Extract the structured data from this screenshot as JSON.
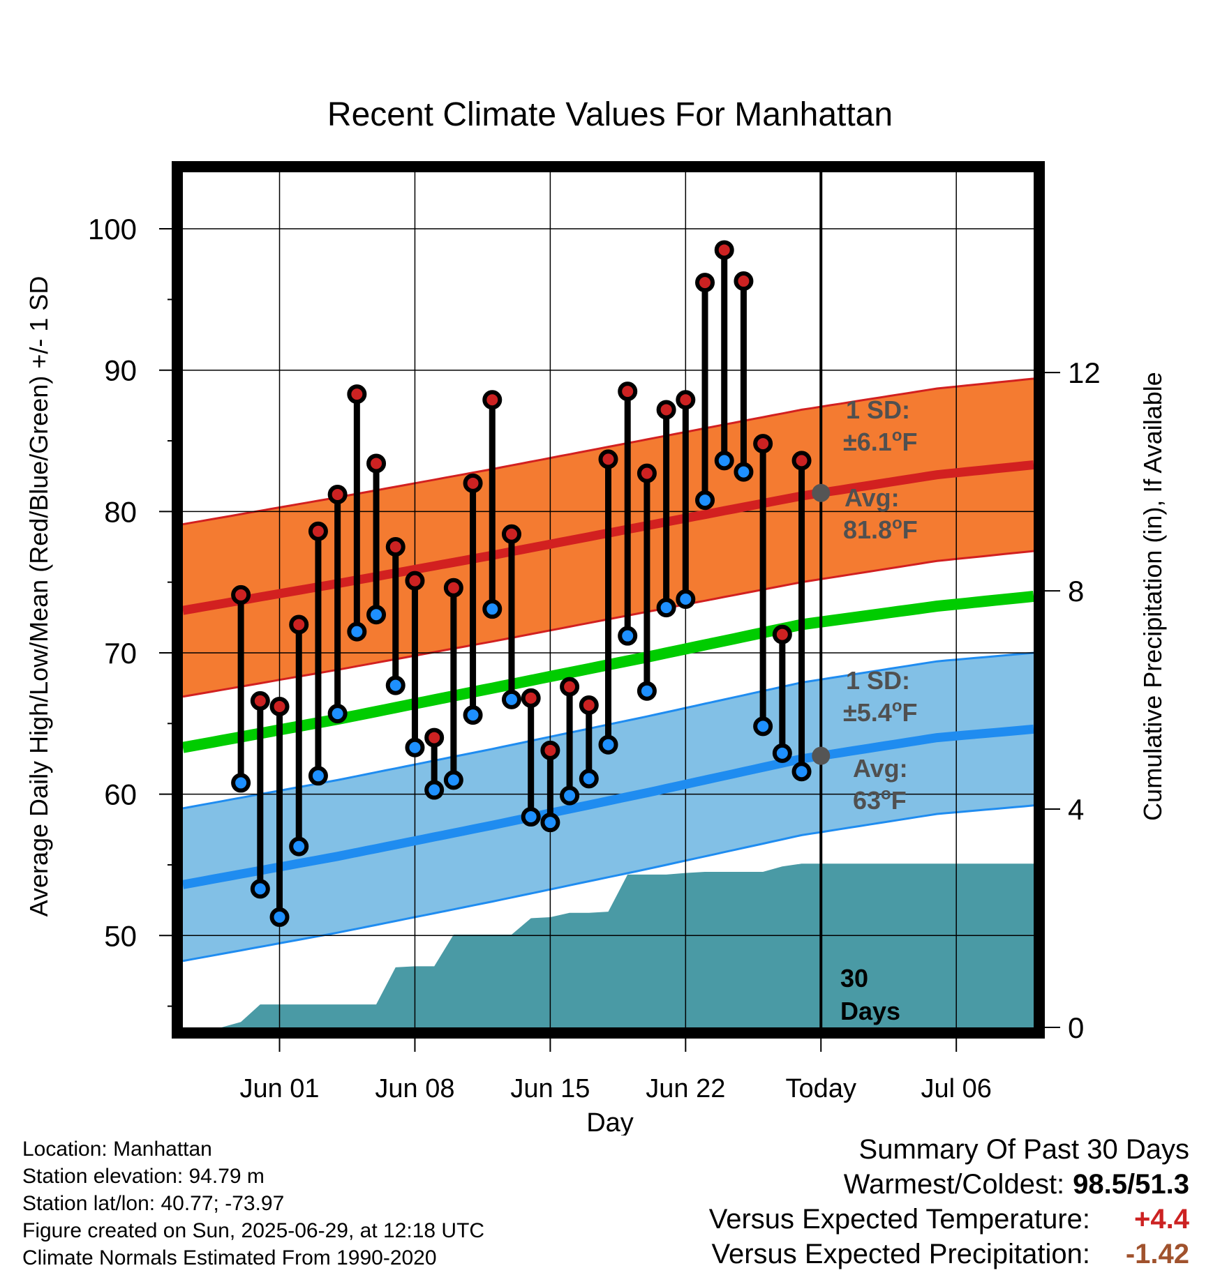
{
  "chart_data": {
    "type": "line",
    "title": "Recent Climate Values For Manhattan",
    "xlabel": "Day",
    "ylabel": "Average Daily High/Low/Mean (Red/Blue/Green) +/- 1 SD",
    "ylabel_right": "Cumulative Precipitation (in), If Available",
    "x_range": [
      "2025-05-27",
      "2025-07-10"
    ],
    "ylim": [
      43.5,
      104
    ],
    "y2lim": [
      0,
      15.67
    ],
    "x_ticks": [
      {
        "date": "2025-06-01",
        "label": "Jun 01"
      },
      {
        "date": "2025-06-08",
        "label": "Jun 08"
      },
      {
        "date": "2025-06-15",
        "label": "Jun 15"
      },
      {
        "date": "2025-06-22",
        "label": "Jun 22"
      },
      {
        "date": "2025-06-29",
        "label": "Today"
      },
      {
        "date": "2025-07-06",
        "label": "Jul 06"
      }
    ],
    "y_ticks": [
      50,
      60,
      70,
      80,
      90,
      100
    ],
    "y2_ticks": [
      0,
      4,
      8,
      12
    ],
    "grid": true,
    "today": "2025-06-29",
    "daily_obs": {
      "dates": [
        "2025-05-30",
        "2025-05-31",
        "2025-06-01",
        "2025-06-02",
        "2025-06-03",
        "2025-06-04",
        "2025-06-05",
        "2025-06-06",
        "2025-06-07",
        "2025-06-08",
        "2025-06-09",
        "2025-06-10",
        "2025-06-11",
        "2025-06-12",
        "2025-06-13",
        "2025-06-14",
        "2025-06-15",
        "2025-06-16",
        "2025-06-17",
        "2025-06-18",
        "2025-06-19",
        "2025-06-20",
        "2025-06-21",
        "2025-06-22",
        "2025-06-23",
        "2025-06-24",
        "2025-06-25",
        "2025-06-26",
        "2025-06-27",
        "2025-06-28"
      ],
      "high": [
        74.1,
        66.6,
        66.2,
        72.0,
        78.6,
        81.2,
        88.3,
        83.4,
        77.5,
        75.1,
        64.0,
        74.6,
        82.0,
        87.9,
        78.4,
        66.8,
        63.1,
        67.6,
        66.3,
        83.7,
        88.5,
        82.7,
        87.2,
        87.9,
        96.2,
        98.5,
        96.3,
        84.8,
        71.3,
        83.6
      ],
      "low": [
        60.8,
        53.3,
        51.3,
        56.3,
        61.3,
        65.7,
        71.5,
        72.7,
        67.7,
        63.3,
        60.3,
        61.0,
        65.6,
        73.1,
        66.7,
        58.4,
        58.0,
        59.9,
        61.1,
        63.5,
        71.2,
        67.3,
        73.2,
        73.8,
        80.8,
        83.6,
        82.8,
        64.8,
        62.9,
        61.6
      ]
    },
    "normals": {
      "dates": [
        "2025-05-27",
        "2025-06-04",
        "2025-06-12",
        "2025-06-20",
        "2025-06-28",
        "2025-07-05",
        "2025-07-10"
      ],
      "avg_high": [
        73.0,
        74.9,
        76.9,
        79.0,
        81.1,
        82.6,
        83.3
      ],
      "avg_low": [
        53.6,
        55.6,
        57.8,
        60.1,
        62.5,
        64.0,
        64.6
      ],
      "avg_mean": [
        63.3,
        65.3,
        67.5,
        69.7,
        72.0,
        73.3,
        74.0
      ],
      "sd_high": 6.1,
      "sd_low": 5.4
    },
    "precip_cumulative": {
      "dates": [
        "2025-05-28",
        "2025-05-29",
        "2025-05-30",
        "2025-05-31",
        "2025-06-01",
        "2025-06-02",
        "2025-06-03",
        "2025-06-04",
        "2025-06-05",
        "2025-06-06",
        "2025-06-07",
        "2025-06-08",
        "2025-06-09",
        "2025-06-10",
        "2025-06-11",
        "2025-06-12",
        "2025-06-13",
        "2025-06-14",
        "2025-06-15",
        "2025-06-16",
        "2025-06-17",
        "2025-06-18",
        "2025-06-19",
        "2025-06-20",
        "2025-06-21",
        "2025-06-22",
        "2025-06-23",
        "2025-06-24",
        "2025-06-25",
        "2025-06-26",
        "2025-06-27",
        "2025-06-28",
        "2025-06-29",
        "2025-07-10"
      ],
      "values": [
        0.0,
        0.0,
        0.1,
        0.42,
        0.42,
        0.42,
        0.42,
        0.42,
        0.42,
        0.42,
        1.1,
        1.12,
        1.12,
        1.7,
        1.7,
        1.7,
        1.7,
        2.0,
        2.02,
        2.1,
        2.1,
        2.12,
        2.8,
        2.8,
        2.8,
        2.83,
        2.85,
        2.85,
        2.85,
        2.85,
        2.95,
        3.0,
        3.0,
        3.0
      ]
    },
    "annotations": {
      "high_sd_label": "1 SD:",
      "high_sd_value": "±6.1",
      "high_avg_label": "Avg:",
      "high_avg_value": "81.8",
      "low_sd_label": "1 SD:",
      "low_sd_value": "±5.4",
      "low_avg_label": "Avg:",
      "low_avg_value": "63",
      "degree_unit": "o",
      "unit_letter": "F",
      "window_label_1": "30",
      "window_label_2": "Days"
    },
    "colors": {
      "high_band": "#f47b31",
      "high_line": "#d22020",
      "low_band": "#82c0e6",
      "low_line": "#1f8cf0",
      "mean_line": "#00cc00",
      "precip": "#4a9aa5",
      "high_dot": "#cc2222",
      "low_dot": "#1e90ff",
      "annotation": "#505050"
    }
  },
  "info": {
    "location": "Location: Manhattan",
    "elevation": "Station elevation: 94.79 m",
    "latlon": "Station lat/lon: 40.77; -73.97",
    "created": "Figure created on Sun, 2025-06-29, at 12:18 UTC",
    "normals": "Climate Normals Estimated From 1990-2020"
  },
  "summary": {
    "title": "Summary Of Past 30 Days",
    "warm_cold_label": "Warmest/Coldest:",
    "warm_cold_value": "98.5/51.3",
    "temp_label": "Versus Expected Temperature:",
    "temp_value": "+4.4",
    "temp_color": "#cc2222",
    "precip_label": "Versus Expected Precipitation:",
    "precip_value": "-1.42",
    "precip_color": "#a0522d"
  }
}
